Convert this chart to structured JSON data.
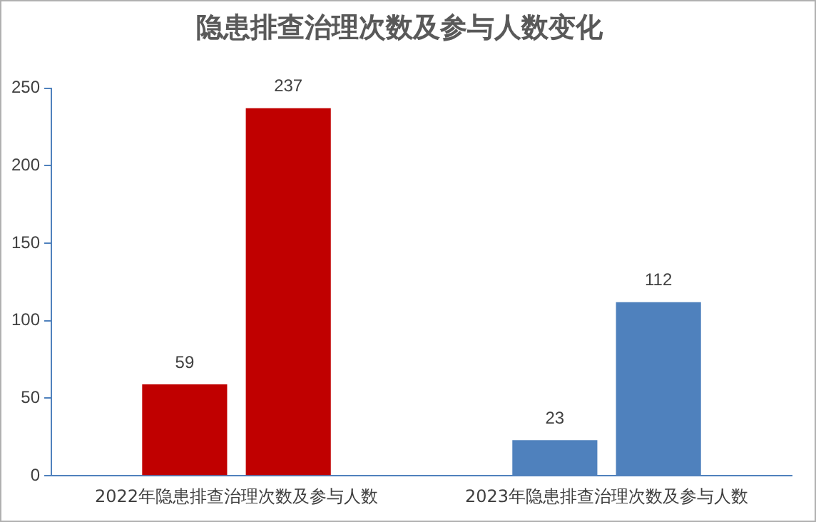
{
  "chart_data": {
    "type": "bar",
    "title": "隐患排查治理次数及参与人数变化",
    "categories": [
      "2022年隐患排查治理次数及参与人数",
      "2023年隐患排查治理次数及参与人数"
    ],
    "series": [
      {
        "colors": [
          "#c00000",
          "#4f81bd"
        ],
        "values": [
          59,
          23
        ]
      },
      {
        "colors": [
          "#c00000",
          "#4f81bd"
        ],
        "values": [
          237,
          112
        ]
      }
    ],
    "ylim": [
      0,
      250
    ],
    "yticks": [
      0,
      50,
      100,
      150,
      200,
      250
    ],
    "grid": false,
    "legend": false,
    "data_labels": true
  }
}
